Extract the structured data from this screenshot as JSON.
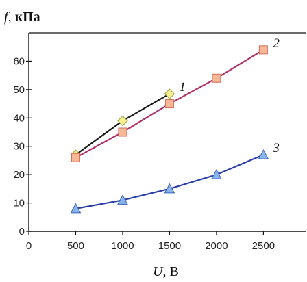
{
  "chart_data": {
    "type": "line",
    "title": "",
    "ylabel": {
      "var": "f",
      "sep": ", ",
      "unit": "кПа"
    },
    "xlabel": {
      "var": "U",
      "sep": ", ",
      "unit": "В"
    },
    "xlim": [
      0,
      2950
    ],
    "ylim": [
      0,
      70
    ],
    "xticks": [
      0,
      500,
      1000,
      1500,
      2000,
      2500
    ],
    "yticks": [
      0,
      10,
      20,
      30,
      40,
      50,
      60
    ],
    "grid": false,
    "legend": "none",
    "series": [
      {
        "name": "1",
        "marker": "diamond",
        "line_color": "#1a1a1a",
        "marker_fill": "#f4f08c",
        "marker_stroke": "#9a9a40",
        "x": [
          500,
          1000,
          1500
        ],
        "y": [
          27,
          39,
          48.5
        ]
      },
      {
        "name": "2",
        "marker": "square",
        "line_color": "#b0306a",
        "marker_fill": "#f6b896",
        "marker_stroke": "#d0705a",
        "x": [
          500,
          1000,
          1500,
          2000,
          2500
        ],
        "y": [
          26,
          35,
          45,
          54,
          64
        ]
      },
      {
        "name": "3",
        "marker": "triangle",
        "line_color": "#2a3ea8",
        "marker_fill": "#8ab4ec",
        "marker_stroke": "#3a60b8",
        "x": [
          500,
          1000,
          1500,
          2000,
          2500
        ],
        "y": [
          8,
          11,
          15,
          20,
          27
        ]
      }
    ]
  }
}
